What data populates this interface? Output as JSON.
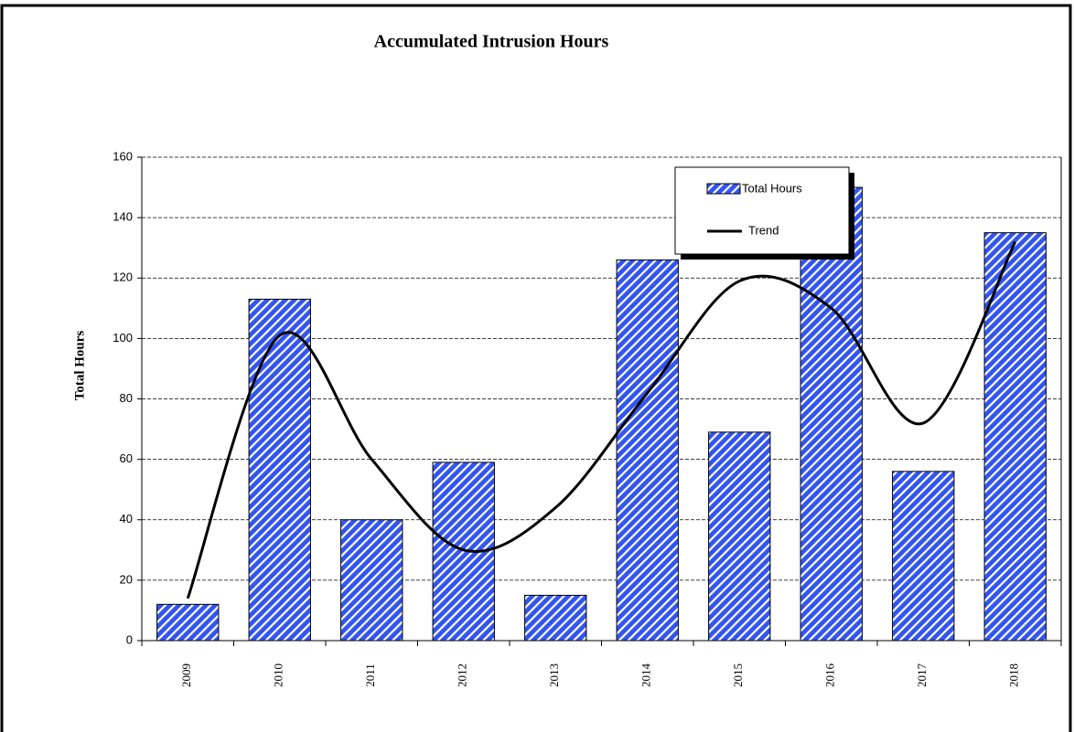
{
  "chart_data": {
    "type": "bar",
    "title": "Accumulated Intrusion Hours",
    "y_label": "Total Hours",
    "categories": [
      "2009",
      "2010",
      "2011",
      "2012",
      "2013",
      "2014",
      "2015",
      "2016",
      "2017",
      "2018"
    ],
    "series": [
      {
        "name": "Total Hours",
        "type": "bar",
        "color": "#3355ee",
        "values": [
          12,
          113,
          40,
          59,
          15,
          126,
          69,
          150,
          56,
          135
        ]
      },
      {
        "name": "Trend",
        "type": "line",
        "color": "#000000",
        "values": [
          14,
          101,
          60,
          30,
          44,
          82,
          119,
          110,
          72,
          132
        ]
      }
    ],
    "ylim": [
      0,
      160
    ],
    "yticks": [
      0,
      20,
      40,
      60,
      80,
      100,
      120,
      140,
      160
    ],
    "grid": true
  }
}
